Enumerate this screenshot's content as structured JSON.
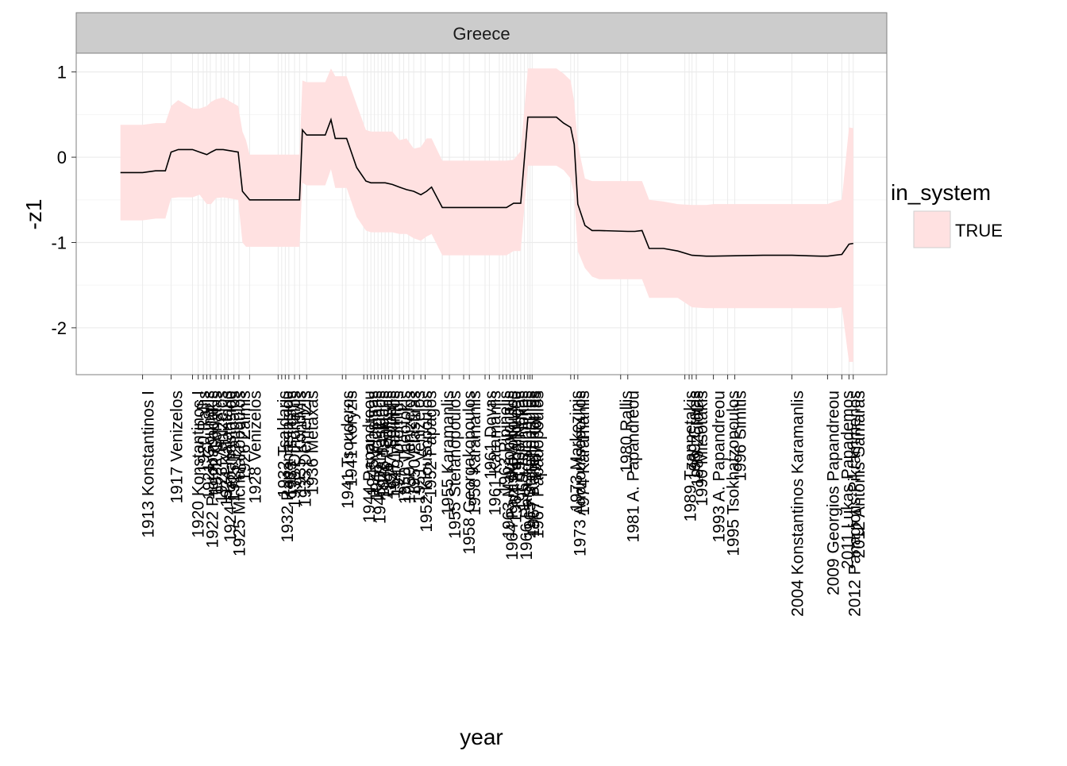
{
  "chart_data": {
    "type": "area",
    "facet_label": "Greece",
    "xlabel": "year",
    "ylabel": "-z1",
    "ylim": [
      -2.55,
      1.22
    ],
    "y_ticks": [
      1,
      0,
      -1,
      -2
    ],
    "y_tick_labels": [
      "1",
      "0",
      "-1",
      "-2"
    ],
    "xlim": [
      1903.7,
      2017.3
    ],
    "grid": true,
    "legend": {
      "title": "in_system",
      "position": "right",
      "entries": [
        {
          "label": "TRUE",
          "fill": "#ffe1e1"
        }
      ]
    },
    "colors": {
      "ribbon": "#ffe1e1",
      "line": "#000000",
      "strip": "#cccccc",
      "grid_major": "#ebebeb",
      "grid_minor": "#f5f5f5",
      "panel_border": "#7f7f7f"
    },
    "series": [
      {
        "x": [
          1909.9,
          1913,
          1914.8,
          1916.2,
          1917,
          1918,
          1920,
          1921,
          1922,
          1922.6,
          1923.3,
          1924.3,
          1926.4,
          1927,
          1927.5,
          1928,
          1929,
          1932,
          1933,
          1935,
          1935.4,
          1936,
          1937,
          1938.6,
          1939.4,
          1940,
          1941,
          1941.6,
          1943,
          1944.3,
          1945,
          1946,
          1947,
          1948,
          1949,
          1950,
          1951,
          1952,
          1952.8,
          1953.5,
          1955,
          1958,
          1960,
          1962,
          1963,
          1964,
          1965,
          1966,
          1967,
          1968,
          1969,
          1970,
          1971,
          1972,
          1973,
          1973.5,
          1974,
          1975,
          1976,
          1977,
          1981,
          1982,
          1983,
          1984,
          1986,
          1988,
          1990,
          1992,
          1993,
          2000,
          2002,
          2004,
          2008,
          2009,
          2010,
          2011,
          2012,
          2012.6
        ],
        "upper": [
          0.38,
          0.38,
          0.4,
          0.4,
          0.6,
          0.67,
          0.57,
          0.57,
          0.6,
          0.65,
          0.68,
          0.7,
          0.6,
          0.3,
          0.2,
          0.03,
          0.03,
          0.03,
          0.03,
          0.03,
          0.9,
          0.88,
          0.88,
          0.88,
          1.04,
          0.95,
          0.95,
          0.95,
          0.62,
          0.32,
          0.3,
          0.3,
          0.3,
          0.3,
          0.2,
          0.22,
          0.1,
          0.12,
          0.22,
          0.22,
          -0.04,
          -0.04,
          -0.04,
          -0.04,
          -0.04,
          -0.04,
          -0.03,
          0.07,
          1.04,
          1.04,
          1.04,
          1.04,
          1.04,
          0.98,
          0.9,
          0.65,
          0.15,
          -0.25,
          -0.28,
          -0.28,
          -0.28,
          -0.28,
          -0.28,
          -0.5,
          -0.52,
          -0.55,
          -0.56,
          -0.56,
          -0.55,
          -0.55,
          -0.55,
          -0.55,
          -0.55,
          -0.55,
          -0.52,
          -0.5,
          0.35,
          0.34
        ],
        "mid": [
          -0.18,
          -0.18,
          -0.16,
          -0.16,
          0.06,
          0.09,
          0.09,
          0.06,
          0.03,
          0.06,
          0.09,
          0.09,
          0.06,
          -0.4,
          -0.45,
          -0.5,
          -0.5,
          -0.5,
          -0.5,
          -0.5,
          0.32,
          0.26,
          0.26,
          0.26,
          0.44,
          0.22,
          0.22,
          0.22,
          -0.12,
          -0.28,
          -0.3,
          -0.3,
          -0.3,
          -0.32,
          -0.35,
          -0.38,
          -0.4,
          -0.44,
          -0.4,
          -0.35,
          -0.59,
          -0.59,
          -0.59,
          -0.59,
          -0.59,
          -0.59,
          -0.54,
          -0.54,
          0.47,
          0.47,
          0.47,
          0.47,
          0.47,
          0.4,
          0.35,
          0.15,
          -0.55,
          -0.8,
          -0.86,
          -0.86,
          -0.87,
          -0.87,
          -0.86,
          -1.07,
          -1.07,
          -1.1,
          -1.15,
          -1.16,
          -1.16,
          -1.15,
          -1.15,
          -1.15,
          -1.16,
          -1.16,
          -1.15,
          -1.14,
          -1.02,
          -1.01
        ],
        "lower": [
          -0.74,
          -0.74,
          -0.72,
          -0.72,
          -0.48,
          -0.47,
          -0.47,
          -0.44,
          -0.55,
          -0.55,
          -0.48,
          -0.47,
          -0.5,
          -1.0,
          -1.05,
          -1.05,
          -1.05,
          -1.05,
          -1.05,
          -1.05,
          -0.3,
          -0.33,
          -0.33,
          -0.33,
          -0.14,
          -0.36,
          -0.36,
          -0.36,
          -0.7,
          -0.86,
          -0.88,
          -0.88,
          -0.88,
          -0.88,
          -0.9,
          -0.9,
          -0.95,
          -0.98,
          -0.93,
          -0.9,
          -1.15,
          -1.15,
          -1.15,
          -1.15,
          -1.15,
          -1.15,
          -1.1,
          -1.1,
          -0.1,
          -0.1,
          -0.1,
          -0.1,
          -0.1,
          -0.15,
          -0.25,
          -0.45,
          -1.1,
          -1.3,
          -1.4,
          -1.43,
          -1.43,
          -1.43,
          -1.43,
          -1.65,
          -1.65,
          -1.65,
          -1.76,
          -1.77,
          -1.77,
          -1.77,
          -1.77,
          -1.77,
          -1.77,
          -1.77,
          -1.77,
          -1.76,
          -2.4,
          -2.4
        ]
      }
    ],
    "x_tick_labels": [
      {
        "x": 1913,
        "label": "1913 Konstantinos I"
      },
      {
        "x": 1917,
        "label": "1917 Venizelos"
      },
      {
        "x": 1920,
        "label": "1920 Konstantinos I"
      },
      {
        "x": 1920.8,
        "label": "1920 Rallis"
      },
      {
        "x": 1921.5,
        "label": "1921 Gounaris"
      },
      {
        "x": 1922,
        "label": "1922 Protopapadakis"
      },
      {
        "x": 1922.5,
        "label": "1922 Gonatas"
      },
      {
        "x": 1923.3,
        "label": "1923 Venizelos"
      },
      {
        "x": 1924,
        "label": "1924 Kafantaris"
      },
      {
        "x": 1924.5,
        "label": "1924 Papanastasiou"
      },
      {
        "x": 1925,
        "label": "1925 Pangalos"
      },
      {
        "x": 1925.8,
        "label": "1925 Michalakopoulos"
      },
      {
        "x": 1926.5,
        "label": "1926 Zaimis"
      },
      {
        "x": 1928,
        "label": "1928 Venizelos"
      },
      {
        "x": 1932,
        "label": "1932 Tsaldaris"
      },
      {
        "x": 1932.5,
        "label": "1932 Papanastasiou"
      },
      {
        "x": 1933,
        "label": "1933 Tsaldaris"
      },
      {
        "x": 1933.5,
        "label": "1933 Othonaios"
      },
      {
        "x": 1934.3,
        "label": "1935 Kondylis"
      },
      {
        "x": 1935,
        "label": "1935 Demertzis"
      },
      {
        "x": 1936,
        "label": "1936 Metaxas"
      },
      {
        "x": 1941,
        "label": "1941 Tsouderos"
      },
      {
        "x": 1941.5,
        "label": "1941 Koryzis"
      },
      {
        "x": 1944,
        "label": "1944 Papandreou"
      },
      {
        "x": 1944.5,
        "label": "1945 Plastiras"
      },
      {
        "x": 1945,
        "label": "1945 Voulgaris"
      },
      {
        "x": 1945.5,
        "label": "1945 Damaskinos"
      },
      {
        "x": 1946,
        "label": "1946 Tsaldaris"
      },
      {
        "x": 1946.5,
        "label": "1946 Poulitsas"
      },
      {
        "x": 1947,
        "label": "1947 Sofoulis"
      },
      {
        "x": 1947.5,
        "label": "1947 Maximos"
      },
      {
        "x": 1948,
        "label": "1949 Diomidis"
      },
      {
        "x": 1949,
        "label": "1950 Theotokis"
      },
      {
        "x": 1949.6,
        "label": "1950 Venizelos"
      },
      {
        "x": 1950.3,
        "label": "1950 Plastiras"
      },
      {
        "x": 1951,
        "label": "1951 Venizelos"
      },
      {
        "x": 1952,
        "label": "1952 Kiousopoulos"
      },
      {
        "x": 1952.6,
        "label": "1952 Papagos"
      },
      {
        "x": 1955,
        "label": "1955 Karamanlis"
      },
      {
        "x": 1956,
        "label": "1955 Stefanopoulos"
      },
      {
        "x": 1958,
        "label": "1958 Georgakopoulos"
      },
      {
        "x": 1958.8,
        "label": "1958 Karamanlis"
      },
      {
        "x": 1961,
        "label": "1961 Dovas"
      },
      {
        "x": 1961.6,
        "label": "1961 Karamanlis"
      },
      {
        "x": 1963,
        "label": "1963 Pipinelis"
      },
      {
        "x": 1963.5,
        "label": "1963 Mavromichalis"
      },
      {
        "x": 1964,
        "label": "1964 Paraskevopoulos"
      },
      {
        "x": 1964.5,
        "label": "1964 Papandreou"
      },
      {
        "x": 1965,
        "label": "1965 Novas"
      },
      {
        "x": 1965.5,
        "label": "1965 Tsirimokos"
      },
      {
        "x": 1966,
        "label": "1966 Paraskevopoulos"
      },
      {
        "x": 1966.5,
        "label": "1965 Stefanopoulos"
      },
      {
        "x": 1967,
        "label": "1967 Kanellopoulos"
      },
      {
        "x": 1967.3,
        "label": "1967 Kollias"
      },
      {
        "x": 1967.6,
        "label": "1967 Papadopoulos"
      },
      {
        "x": 1973,
        "label": "1973 Markezinis"
      },
      {
        "x": 1973.5,
        "label": "1973 Androutsopoulos"
      },
      {
        "x": 1974,
        "label": "1974 Karamanlis"
      },
      {
        "x": 1980,
        "label": "1980 Rallis"
      },
      {
        "x": 1981,
        "label": "1981 A. Papandreou"
      },
      {
        "x": 1989,
        "label": "1989 Tzannetakis"
      },
      {
        "x": 1989.6,
        "label": "1989 Grivas"
      },
      {
        "x": 1990,
        "label": "1989 Zolotas"
      },
      {
        "x": 1990.6,
        "label": "1990 Mitsotakis"
      },
      {
        "x": 1993,
        "label": "1993 A. Papandreou"
      },
      {
        "x": 1995,
        "label": "1995 Tsokhatzopoulos"
      },
      {
        "x": 1996,
        "label": "1996 Simitis"
      },
      {
        "x": 2004,
        "label": "2004 Konstantinos Karamanlis"
      },
      {
        "x": 2009,
        "label": "2009 Georgios Papandreou"
      },
      {
        "x": 2011,
        "label": "2011 Lukas Papademos"
      },
      {
        "x": 2012,
        "label": "2012 Panagiotis Pikrammenos"
      },
      {
        "x": 2012.6,
        "label": "2012 Antonis Samaras"
      }
    ]
  }
}
